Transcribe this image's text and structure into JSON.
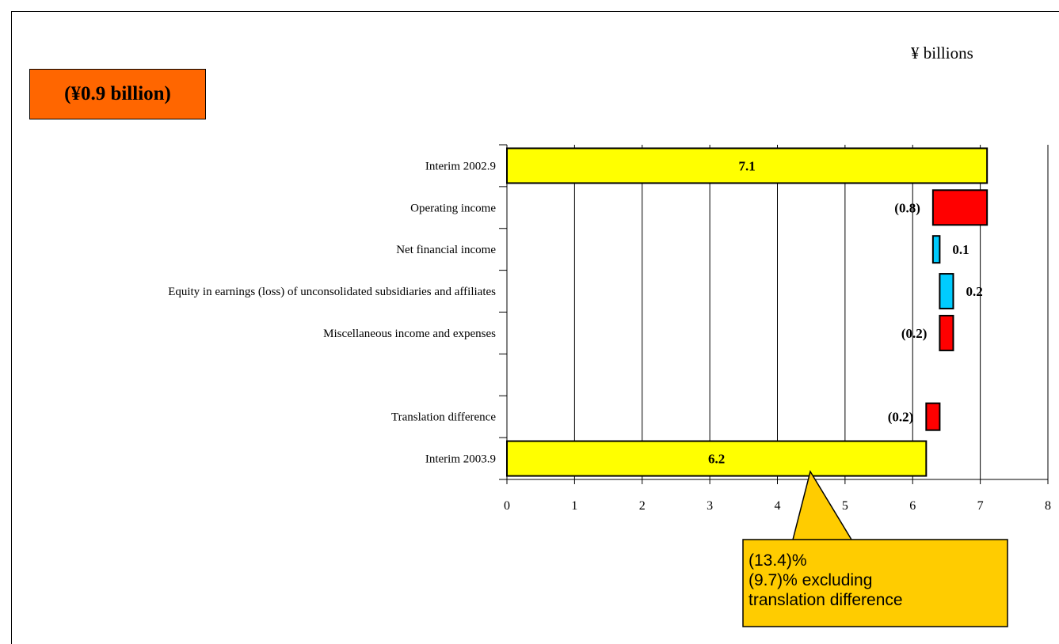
{
  "unit_label": "¥ billions",
  "summary_box": "(¥0.9 billion)",
  "colors": {
    "total": "#ffff00",
    "decrease": "#ff0000",
    "increase": "#00ccff",
    "summary_box": "#ff6600",
    "callout": "#ffcc00"
  },
  "callout": {
    "line1": "(13.4)%",
    "line2": "(9.7)% excluding",
    "line3": "translation difference"
  },
  "chart_data": {
    "type": "bar",
    "orientation": "horizontal-waterfall",
    "xlim": [
      0,
      8
    ],
    "x_ticks": [
      "0",
      "1",
      "2",
      "3",
      "4",
      "5",
      "6",
      "7",
      "8"
    ],
    "grid": true,
    "bars": [
      {
        "category": "Interim 2002.9",
        "start": 0,
        "end": 7.1,
        "label": "7.1",
        "kind": "total",
        "label_pos": "inside"
      },
      {
        "category": "Operating income",
        "start": 6.3,
        "end": 7.1,
        "label": "(0.8)",
        "kind": "decrease",
        "label_pos": "left"
      },
      {
        "category": "Net financial income",
        "start": 6.3,
        "end": 6.4,
        "label": "0.1",
        "kind": "increase",
        "label_pos": "right"
      },
      {
        "category": "Equity in earnings (loss) of unconsolidated subsidiaries and affiliates",
        "start": 6.4,
        "end": 6.6,
        "label": "0.2",
        "kind": "increase",
        "label_pos": "right"
      },
      {
        "category": "Miscellaneous income and expenses",
        "start": 6.4,
        "end": 6.6,
        "label": "(0.2)",
        "kind": "decrease",
        "label_pos": "left"
      },
      {
        "category": "",
        "start": null,
        "end": null,
        "label": "",
        "kind": "gap",
        "label_pos": "none"
      },
      {
        "category": "Translation difference",
        "start": 6.2,
        "end": 6.4,
        "label": "(0.2)",
        "kind": "decrease",
        "label_pos": "left"
      },
      {
        "category": "Interim 2003.9",
        "start": 0,
        "end": 6.2,
        "label": "6.2",
        "kind": "total",
        "label_pos": "inside"
      }
    ]
  }
}
